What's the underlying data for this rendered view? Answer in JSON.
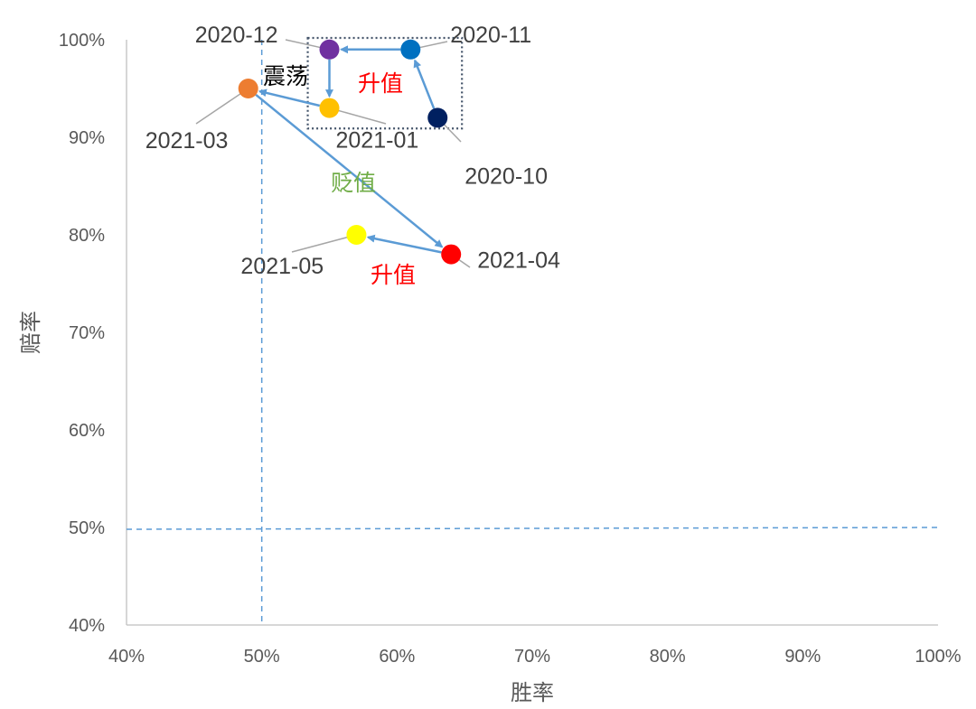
{
  "chart_data": {
    "type": "scatter",
    "xlabel": "胜率",
    "ylabel": "赔率",
    "xlim": [
      0.4,
      1.0
    ],
    "ylim": [
      0.4,
      1.0
    ],
    "x_ticks": [
      "40%",
      "50%",
      "60%",
      "70%",
      "80%",
      "90%",
      "100%"
    ],
    "y_ticks": [
      "40%",
      "50%",
      "60%",
      "70%",
      "80%",
      "90%",
      "100%"
    ],
    "grid": false,
    "reference_lines": {
      "x": 0.5,
      "y": 0.5
    },
    "points": [
      {
        "label": "2020-10",
        "x": 0.63,
        "y": 0.92,
        "color": "#002060"
      },
      {
        "label": "2020-11",
        "x": 0.61,
        "y": 0.99,
        "color": "#0070C0"
      },
      {
        "label": "2020-12",
        "x": 0.55,
        "y": 0.99,
        "color": "#7030A0"
      },
      {
        "label": "2021-01",
        "x": 0.55,
        "y": 0.93,
        "color": "#FFC000"
      },
      {
        "label": "2021-03",
        "x": 0.49,
        "y": 0.95,
        "color": "#ED7D31"
      },
      {
        "label": "2021-04",
        "x": 0.64,
        "y": 0.78,
        "color": "#FF0000"
      },
      {
        "label": "2021-05",
        "x": 0.57,
        "y": 0.8,
        "color": "#FFFF00"
      }
    ],
    "path_order": [
      "2020-10",
      "2020-11",
      "2020-12",
      "2021-01",
      "2021-03",
      "2021-04",
      "2021-05"
    ],
    "path_color": "#5B9BD5",
    "annotations": [
      {
        "text": "震荡",
        "color": "#000000"
      },
      {
        "text": "升值",
        "color": "#FF0000"
      },
      {
        "text": "贬值",
        "color": "#70AD47"
      },
      {
        "text": "升值",
        "color": "#FF0000"
      }
    ],
    "highlight_box": {
      "x": [
        0.534,
        0.648
      ],
      "y": [
        0.909,
        1.0
      ],
      "color": "#44546A"
    }
  }
}
